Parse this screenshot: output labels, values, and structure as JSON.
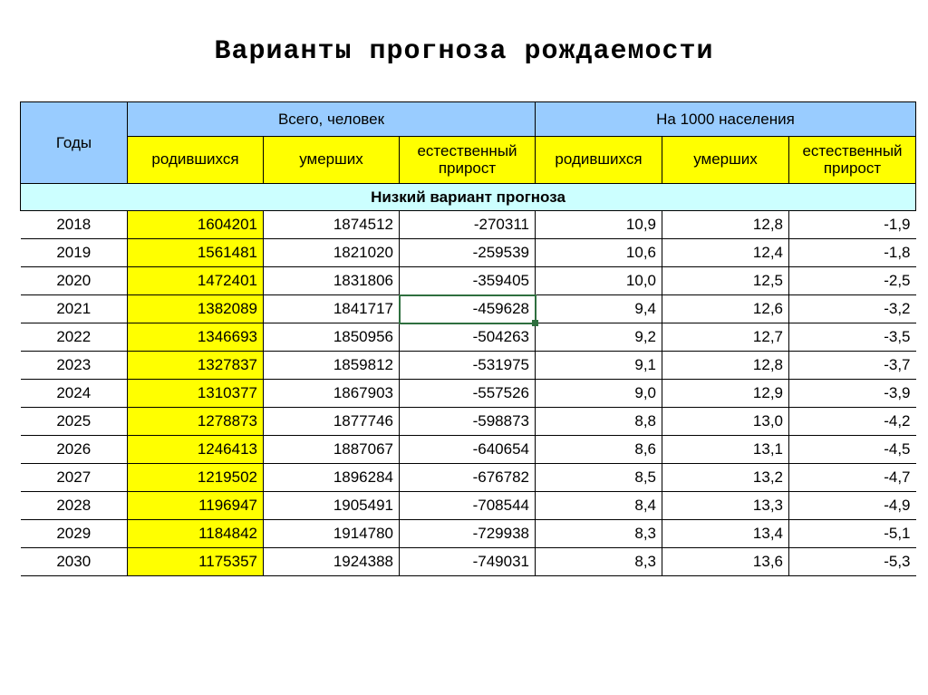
{
  "title": "Варианты прогноза рождаемости",
  "headers": {
    "years": "Годы",
    "total_people": "Всего, человек",
    "per_1000": "На 1000 населения",
    "born": "родившихся",
    "died": "умерших",
    "natural_growth_l1": "естественный",
    "natural_growth_l2": "прирост"
  },
  "section_title": "Низкий вариант прогноза",
  "colors": {
    "header_bg": "#99ccff",
    "subheader_bg": "#ffff00",
    "section_bg": "#ccffff",
    "born_col_bg": "#ffff00",
    "grid_border": "#000000",
    "selection_border": "#2f6f3f",
    "page_bg": "#ffffff"
  },
  "selection": {
    "row_index": 3,
    "col_key": "natural"
  },
  "rows": [
    {
      "year": "2018",
      "born": "1604201",
      "died": "1874512",
      "natural": "-270311",
      "born_rate": "10,9",
      "died_rate": "12,8",
      "natural_rate": "-1,9"
    },
    {
      "year": "2019",
      "born": "1561481",
      "died": "1821020",
      "natural": "-259539",
      "born_rate": "10,6",
      "died_rate": "12,4",
      "natural_rate": "-1,8"
    },
    {
      "year": "2020",
      "born": "1472401",
      "died": "1831806",
      "natural": "-359405",
      "born_rate": "10,0",
      "died_rate": "12,5",
      "natural_rate": "-2,5"
    },
    {
      "year": "2021",
      "born": "1382089",
      "died": "1841717",
      "natural": "-459628",
      "born_rate": "9,4",
      "died_rate": "12,6",
      "natural_rate": "-3,2"
    },
    {
      "year": "2022",
      "born": "1346693",
      "died": "1850956",
      "natural": "-504263",
      "born_rate": "9,2",
      "died_rate": "12,7",
      "natural_rate": "-3,5"
    },
    {
      "year": "2023",
      "born": "1327837",
      "died": "1859812",
      "natural": "-531975",
      "born_rate": "9,1",
      "died_rate": "12,8",
      "natural_rate": "-3,7"
    },
    {
      "year": "2024",
      "born": "1310377",
      "died": "1867903",
      "natural": "-557526",
      "born_rate": "9,0",
      "died_rate": "12,9",
      "natural_rate": "-3,9"
    },
    {
      "year": "2025",
      "born": "1278873",
      "died": "1877746",
      "natural": "-598873",
      "born_rate": "8,8",
      "died_rate": "13,0",
      "natural_rate": "-4,2"
    },
    {
      "year": "2026",
      "born": "1246413",
      "died": "1887067",
      "natural": "-640654",
      "born_rate": "8,6",
      "died_rate": "13,1",
      "natural_rate": "-4,5"
    },
    {
      "year": "2027",
      "born": "1219502",
      "died": "1896284",
      "natural": "-676782",
      "born_rate": "8,5",
      "died_rate": "13,2",
      "natural_rate": "-4,7"
    },
    {
      "year": "2028",
      "born": "1196947",
      "died": "1905491",
      "natural": "-708544",
      "born_rate": "8,4",
      "died_rate": "13,3",
      "natural_rate": "-4,9"
    },
    {
      "year": "2029",
      "born": "1184842",
      "died": "1914780",
      "natural": "-729938",
      "born_rate": "8,3",
      "died_rate": "13,4",
      "natural_rate": "-5,1"
    },
    {
      "year": "2030",
      "born": "1175357",
      "died": "1924388",
      "natural": "-749031",
      "born_rate": "8,3",
      "died_rate": "13,6",
      "natural_rate": "-5,3"
    }
  ]
}
